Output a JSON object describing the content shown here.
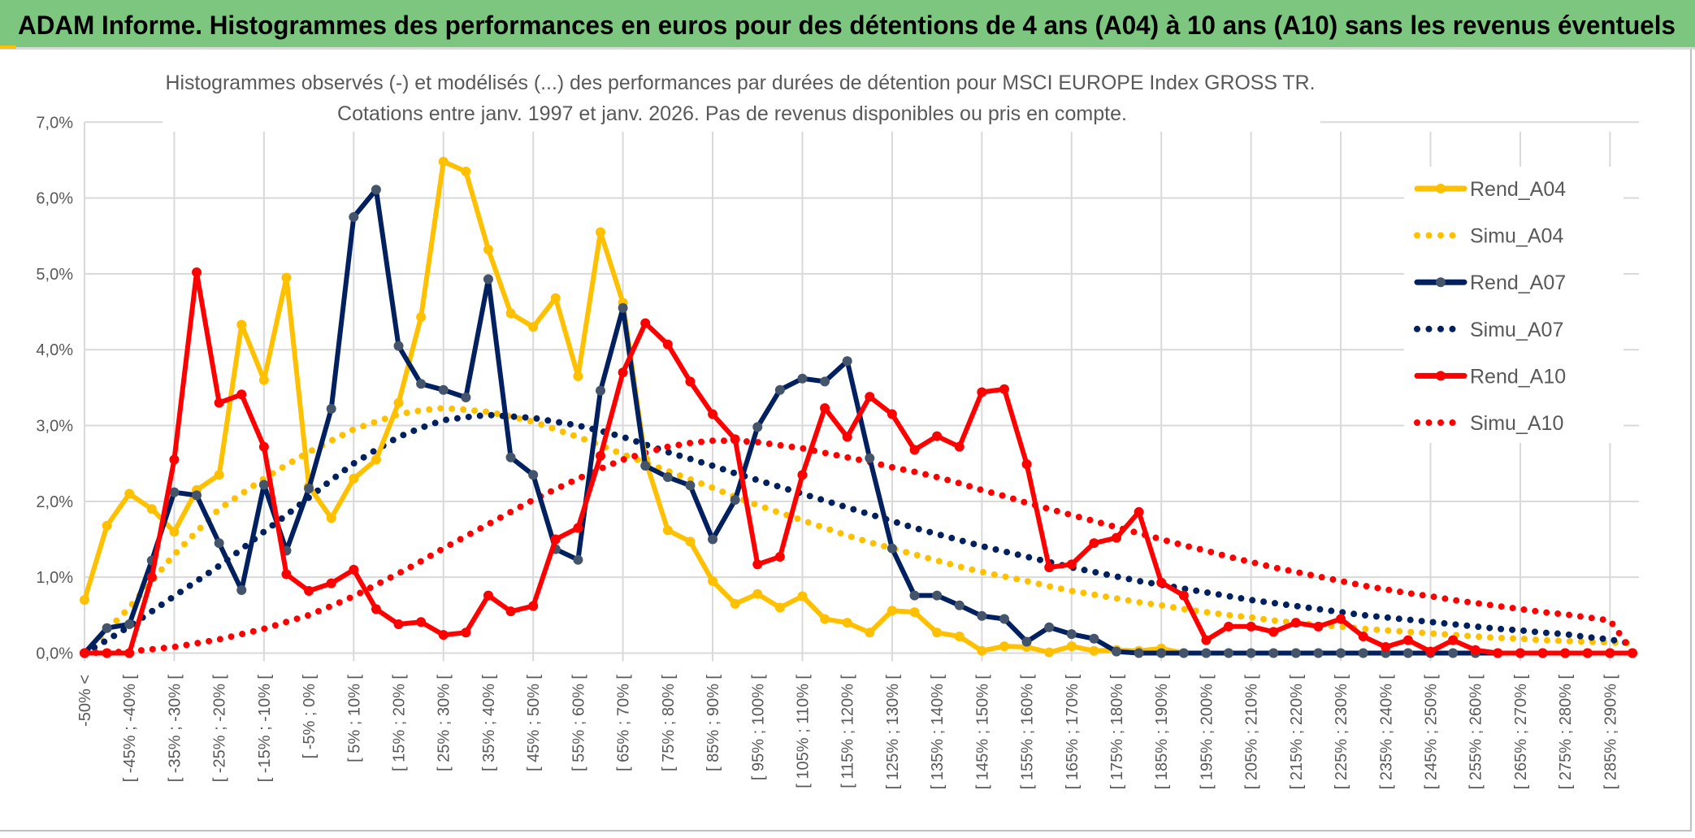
{
  "banner": {
    "title": "ADAM Informe. Histogrammes des performances en euros pour des détentions de 4 ans (A04) à 10 ans (A10) sans les revenus éventuels"
  },
  "chart_data": {
    "type": "line",
    "title": "Histogrammes observés (-) et modélisés (...) des performances par durées de détention pour MSCI EUROPE Index GROSS TR.",
    "subtitle": "Cotations entre janv. 1997 et janv. 2026. Pas de revenus disponibles ou pris en compte.",
    "ylim": [
      0,
      7
    ],
    "y_ticks": [
      "0,0%",
      "1,0%",
      "2,0%",
      "3,0%",
      "4,0%",
      "5,0%",
      "6,0%",
      "7,0%"
    ],
    "grid": true,
    "legend_position": "right",
    "x_count": 70,
    "tick_labels": [
      "-50% <",
      "[ -45% ; -40% [",
      "[ -35% ; -30% [",
      "[ -25% ; -20% [",
      "[ -15% ; -10% [",
      "[ -5% ; 0% [",
      "[ 5% ; 10% [",
      "[ 15% ; 20% [",
      "[ 25% ; 30% [",
      "[ 35% ; 40% [",
      "[ 45% ; 50% [",
      "[ 55% ; 60% [",
      "[ 65% ; 70% [",
      "[ 75% ; 80% [",
      "[ 85% ; 90% [",
      "[ 95% ; 100% [",
      "[ 105% ; 110% [",
      "[ 115% ; 120% [",
      "[ 125% ; 130% [",
      "[ 135% ; 140% [",
      "[ 145% ; 150% [",
      "[ 155% ; 160% [",
      "[ 165% ; 170% [",
      "[ 175% ; 180% [",
      "[ 185% ; 190% [",
      "[ 195% ; 200% [",
      "[ 205% ; 210% [",
      "[ 215% ; 220% [",
      "[ 225% ; 230% [",
      "[ 235% ; 240% [",
      "[ 245% ; 250% [",
      "[ 255% ; 260% [",
      "[ 265% ; 270% [",
      "[ 275% ; 280% [",
      "[ 285% ; 290% ["
    ],
    "series": [
      {
        "name": "Rend_A04",
        "color": "#FFC000",
        "style": "solid-markers",
        "values": [
          0.7,
          1.68,
          2.1,
          1.9,
          1.6,
          2.15,
          2.35,
          4.33,
          3.6,
          4.95,
          2.2,
          1.78,
          2.3,
          2.55,
          3.3,
          4.43,
          6.48,
          6.35,
          5.32,
          4.48,
          4.3,
          4.68,
          3.65,
          5.55,
          4.62,
          2.55,
          1.62,
          1.47,
          0.95,
          0.65,
          0.78,
          0.6,
          0.75,
          0.45,
          0.4,
          0.27,
          0.56,
          0.54,
          0.27,
          0.22,
          0.03,
          0.09,
          0.08,
          0.01,
          0.09,
          0.03,
          0.04,
          0.03,
          0.06,
          0,
          0,
          0,
          0,
          0,
          0,
          0,
          0,
          0,
          0,
          0,
          0,
          0,
          0,
          0,
          0,
          0,
          0,
          0,
          0,
          0
        ]
      },
      {
        "name": "Simu_A04",
        "color": "#FFC000",
        "style": "dotted",
        "values": [
          0,
          0.3,
          0.6,
          0.95,
          1.3,
          1.6,
          1.9,
          2.1,
          2.3,
          2.48,
          2.65,
          2.8,
          2.95,
          3.05,
          3.15,
          3.2,
          3.23,
          3.21,
          3.18,
          3.12,
          3.05,
          2.95,
          2.85,
          2.74,
          2.62,
          2.51,
          2.4,
          2.29,
          2.18,
          2.06,
          1.95,
          1.85,
          1.75,
          1.65,
          1.55,
          1.46,
          1.38,
          1.3,
          1.22,
          1.14,
          1.07,
          1.01,
          0.95,
          0.88,
          0.82,
          0.77,
          0.72,
          0.67,
          0.63,
          0.58,
          0.54,
          0.5,
          0.47,
          0.43,
          0.4,
          0.37,
          0.35,
          0.32,
          0.3,
          0.28,
          0.26,
          0.24,
          0.22,
          0.2,
          0.19,
          0.17,
          0.16,
          0.15,
          0.14,
          0.13
        ]
      },
      {
        "name": "Rend_A07",
        "color": "#002060",
        "marker_color": "#44546A",
        "style": "solid-markers",
        "values": [
          0,
          0.33,
          0.38,
          1.22,
          2.12,
          2.08,
          1.45,
          0.83,
          2.22,
          1.35,
          2.17,
          3.22,
          5.75,
          6.11,
          4.05,
          3.55,
          3.47,
          3.37,
          4.93,
          2.58,
          2.35,
          1.37,
          1.23,
          3.46,
          4.55,
          2.47,
          2.32,
          2.21,
          1.5,
          2.02,
          2.98,
          3.47,
          3.62,
          3.58,
          3.85,
          2.57,
          1.38,
          0.76,
          0.76,
          0.63,
          0.49,
          0.45,
          0.15,
          0.34,
          0.25,
          0.19,
          0.02,
          0,
          0,
          0,
          0,
          0,
          0,
          0,
          0,
          0,
          0,
          0,
          0,
          0,
          0,
          0,
          0,
          0,
          0,
          0,
          0,
          0,
          0,
          0
        ]
      },
      {
        "name": "Simu_A07",
        "color": "#002060",
        "style": "dotted",
        "values": [
          0,
          0.17,
          0.35,
          0.55,
          0.75,
          0.95,
          1.15,
          1.37,
          1.6,
          1.82,
          2.05,
          2.28,
          2.5,
          2.68,
          2.85,
          2.97,
          3.07,
          3.11,
          3.14,
          3.12,
          3.1,
          3.05,
          3.0,
          2.93,
          2.85,
          2.75,
          2.65,
          2.56,
          2.47,
          2.37,
          2.28,
          2.19,
          2.1,
          2.01,
          1.92,
          1.83,
          1.74,
          1.65,
          1.57,
          1.49,
          1.41,
          1.34,
          1.27,
          1.2,
          1.13,
          1.07,
          1.01,
          0.95,
          0.9,
          0.85,
          0.8,
          0.75,
          0.7,
          0.66,
          0.62,
          0.58,
          0.54,
          0.5,
          0.47,
          0.44,
          0.41,
          0.38,
          0.35,
          0.32,
          0.3,
          0.27,
          0.25,
          0.21,
          0.18,
          0.12
        ]
      },
      {
        "name": "Rend_A10",
        "color": "#FF0000",
        "style": "solid-markers",
        "values": [
          0,
          0,
          0,
          1.0,
          2.55,
          5.02,
          3.3,
          3.41,
          2.72,
          1.04,
          0.82,
          0.92,
          1.1,
          0.58,
          0.38,
          0.41,
          0.24,
          0.27,
          0.76,
          0.55,
          0.62,
          1.5,
          1.65,
          2.6,
          3.7,
          4.35,
          4.07,
          3.58,
          3.15,
          2.82,
          1.17,
          1.27,
          2.35,
          3.23,
          2.85,
          3.38,
          3.15,
          2.68,
          2.86,
          2.72,
          3.44,
          3.48,
          2.49,
          1.13,
          1.17,
          1.45,
          1.52,
          1.86,
          0.93,
          0.76,
          0.17,
          0.35,
          0.35,
          0.28,
          0.4,
          0.35,
          0.45,
          0.22,
          0.08,
          0.17,
          0.02,
          0.17,
          0.04,
          0,
          0,
          0,
          0,
          0,
          0,
          0
        ]
      },
      {
        "name": "Simu_A10",
        "color": "#FF0000",
        "style": "dotted",
        "values": [
          0,
          0.01,
          0.02,
          0.05,
          0.08,
          0.13,
          0.18,
          0.25,
          0.32,
          0.41,
          0.5,
          0.62,
          0.75,
          0.9,
          1.05,
          1.21,
          1.38,
          1.54,
          1.7,
          1.86,
          2.02,
          2.16,
          2.3,
          2.43,
          2.55,
          2.64,
          2.72,
          2.77,
          2.8,
          2.8,
          2.78,
          2.74,
          2.7,
          2.64,
          2.58,
          2.52,
          2.45,
          2.39,
          2.32,
          2.24,
          2.15,
          2.07,
          1.98,
          1.9,
          1.82,
          1.74,
          1.66,
          1.58,
          1.5,
          1.42,
          1.35,
          1.27,
          1.2,
          1.13,
          1.07,
          1.01,
          0.95,
          0.89,
          0.84,
          0.79,
          0.75,
          0.7,
          0.66,
          0.62,
          0.58,
          0.54,
          0.51,
          0.47,
          0.43,
          0.02
        ]
      }
    ]
  }
}
